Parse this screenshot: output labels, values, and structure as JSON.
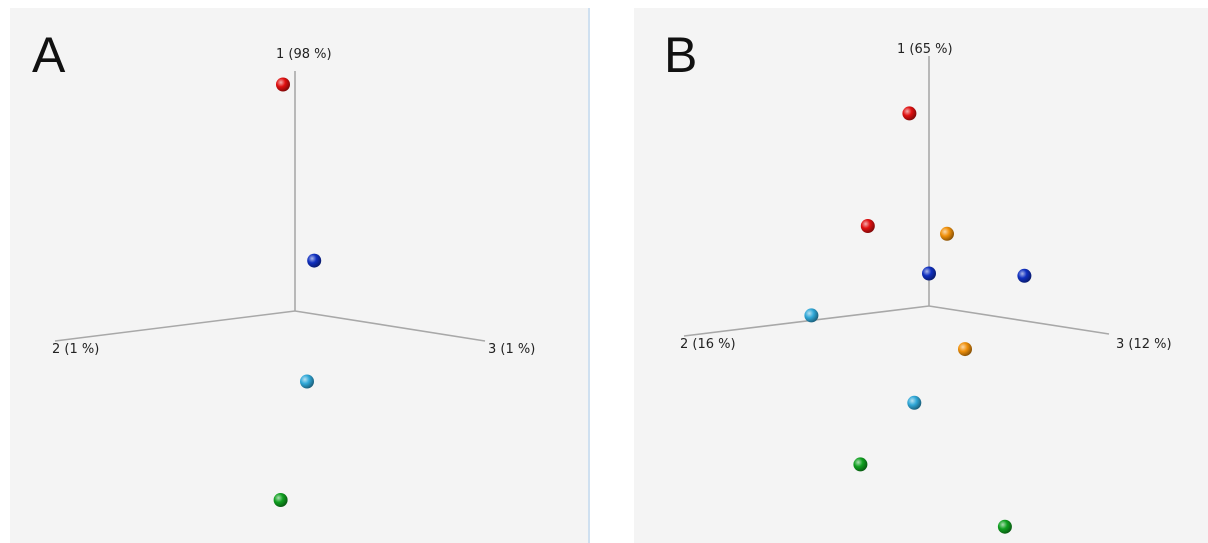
{
  "panels": [
    {
      "letter": "A"
    },
    {
      "letter": "B"
    }
  ],
  "chart_data": [
    {
      "type": "scatter",
      "axes": [
        "1 (98 %)",
        "2 (1 %)",
        "3 (1 %)"
      ],
      "points": [
        {
          "color": "#e01010",
          "a1": 0.95,
          "a2": 0.05,
          "a3": 0.0
        },
        {
          "color": "#1030c0",
          "a1": 0.2,
          "a2": -0.08,
          "a3": 0.0
        },
        {
          "color": "#30a8d8",
          "a1": -0.3,
          "a2": -0.05,
          "a3": 0.0
        },
        {
          "color": "#10a020",
          "a1": -0.78,
          "a2": 0.06,
          "a3": 0.0
        }
      ]
    },
    {
      "type": "scatter",
      "axes": [
        "1 (65 %)",
        "2 (16 %)",
        "3 (12 %)"
      ],
      "points": [
        {
          "color": "#e01010",
          "a1": 0.78,
          "a2": 0.08,
          "a3": 0.0
        },
        {
          "color": "#e01010",
          "a1": 0.35,
          "a2": 0.25,
          "a3": 0.0
        },
        {
          "color": "#f0900a",
          "a1": 0.3,
          "a2": 0.0,
          "a3": 0.1
        },
        {
          "color": "#1030c0",
          "a1": 0.13,
          "a2": 0.0,
          "a3": 0.0
        },
        {
          "color": "#1030c0",
          "a1": 0.18,
          "a2": 0.0,
          "a3": 0.53
        },
        {
          "color": "#30a8d8",
          "a1": 0.02,
          "a2": 0.48,
          "a3": 0.0
        },
        {
          "color": "#f0900a",
          "a1": -0.15,
          "a2": 0.0,
          "a3": 0.2
        },
        {
          "color": "#30a8d8",
          "a1": -0.38,
          "a2": 0.06,
          "a3": 0.0
        },
        {
          "color": "#10a020",
          "a1": -0.6,
          "a2": 0.28,
          "a3": 0.0
        },
        {
          "color": "#10a020",
          "a1": -0.92,
          "a2": -0.31,
          "a3": 0.0
        }
      ]
    }
  ]
}
